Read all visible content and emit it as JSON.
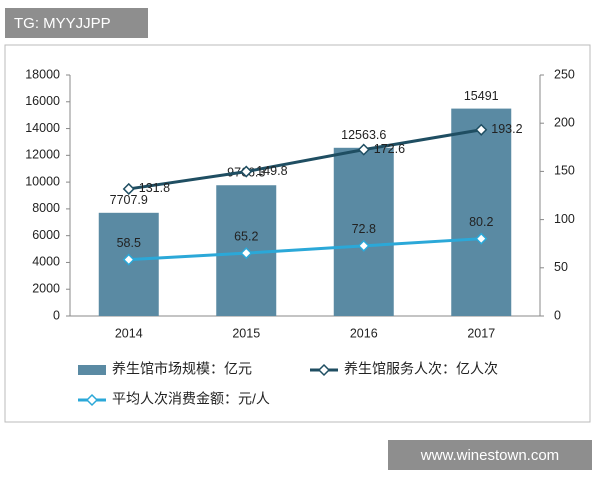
{
  "chart_data": {
    "type": "bar-line",
    "annotations": [
      "TG: MYYJJPP",
      "www.winestown.com"
    ],
    "categories": [
      "2014",
      "2015",
      "2016",
      "2017"
    ],
    "series": [
      {
        "name": "养生馆市场规模：亿元",
        "type": "bar",
        "color": "#5a8aa3",
        "values": [
          7707.9,
          9766.3,
          12563.6,
          15491
        ]
      },
      {
        "name": "养生馆服务人次：亿人次",
        "type": "line",
        "axis": "y2",
        "color": "#1f4e62",
        "values": [
          131.8,
          149.8,
          172.6,
          193.2
        ]
      },
      {
        "name": "平均人次消费金额：元/人",
        "type": "line",
        "axis": "y2",
        "color": "#2ba8d8",
        "values": [
          58.5,
          65.2,
          72.8,
          80.2
        ]
      }
    ],
    "ylim": [
      0,
      18000
    ],
    "yticks": [
      0,
      2000,
      4000,
      6000,
      8000,
      10000,
      12000,
      14000,
      16000,
      18000
    ],
    "y2lim": [
      0,
      250
    ],
    "y2ticks": [
      0,
      50,
      100,
      150,
      200,
      250
    ]
  }
}
